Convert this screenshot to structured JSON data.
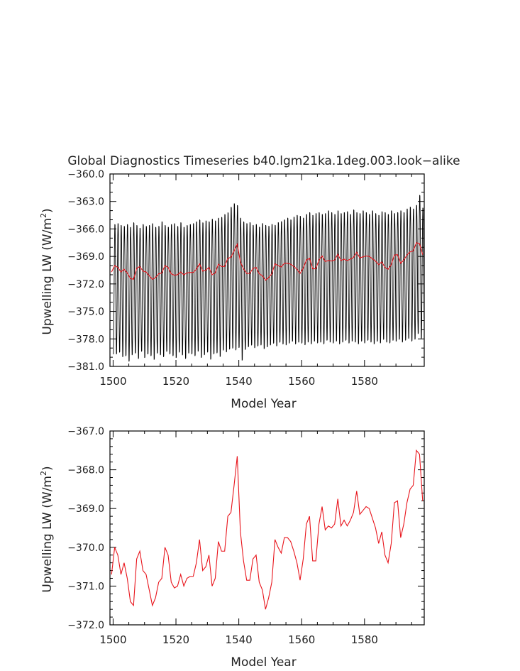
{
  "title": "Global Diagnostics Timeseries b40.lgm21ka.1deg.003.look−alike",
  "chart_data": [
    {
      "type": "line",
      "xlabel": "Model Year",
      "ylabel": "Upwelling LW (W/m",
      "ylabel_sup": "2",
      "ylabel_close": ")",
      "xlim": [
        1499,
        1599
      ],
      "ylim": [
        -381.0,
        -360.0
      ],
      "xticks": [
        1500,
        1520,
        1540,
        1560,
        1580
      ],
      "xtick_labels": [
        "1500",
        "1520",
        "1540",
        "1560",
        "1580"
      ],
      "yticks": [
        -381.0,
        -378.0,
        -375.0,
        -372.0,
        -369.0,
        -366.0,
        -363.0,
        -360.0
      ],
      "ytick_labels": [
        "−381.0",
        "−378.0",
        "−375.0",
        "−372.0",
        "−369.0",
        "−366.0",
        "−363.0",
        "−360.0"
      ],
      "series": [
        {
          "color": "#000000",
          "note_monthly": true,
          "x_start": 1500,
          "x_end": 1598,
          "monthly_max": [
            -365.3,
            -365.2,
            -365.4,
            -365.5,
            -365.3,
            -365.6,
            -365.1,
            -365.4,
            -365.7,
            -365.3,
            -365.5,
            -365.4,
            -365.2,
            -365.6,
            -365.5,
            -365.0,
            -365.4,
            -365.6,
            -365.3,
            -365.2,
            -365.5,
            -365.1,
            -365.6,
            -365.4,
            -365.3,
            -365.2,
            -365.0,
            -364.8,
            -365.1,
            -364.9,
            -365.0,
            -364.7,
            -364.9,
            -364.6,
            -364.5,
            -364.2,
            -364.0,
            -363.4,
            -363.0,
            -363.2,
            -364.6,
            -365.0,
            -365.2,
            -365.1,
            -365.4,
            -365.3,
            -365.6,
            -365.2,
            -365.4,
            -365.5,
            -365.3,
            -365.4,
            -365.1,
            -365.0,
            -364.8,
            -364.6,
            -364.8,
            -364.5,
            -364.3,
            -364.4,
            -364.6,
            -364.2,
            -364.0,
            -364.3,
            -364.1,
            -364.0,
            -364.2,
            -364.1,
            -363.8,
            -364.0,
            -364.2,
            -363.8,
            -364.1,
            -364.0,
            -363.9,
            -364.2,
            -363.7,
            -364.0,
            -364.1,
            -363.8,
            -364.0,
            -364.2,
            -363.8,
            -364.1,
            -364.3,
            -363.9,
            -364.0,
            -364.2,
            -363.8,
            -364.1,
            -364.0,
            -363.8,
            -364.0,
            -363.6,
            -363.4,
            -363.6,
            -363.2,
            -362.1,
            -363.5
          ],
          "monthly_min": [
            -380.0,
            -380.0,
            -379.8,
            -380.3,
            -380.2,
            -380.8,
            -380.1,
            -379.9,
            -380.5,
            -379.7,
            -380.4,
            -380.0,
            -380.2,
            -380.6,
            -379.9,
            -380.1,
            -380.3,
            -379.7,
            -380.0,
            -380.2,
            -380.4,
            -379.8,
            -380.1,
            -380.5,
            -379.9,
            -380.0,
            -380.2,
            -379.7,
            -380.4,
            -380.1,
            -379.8,
            -380.6,
            -380.0,
            -379.9,
            -380.3,
            -379.6,
            -379.8,
            -379.5,
            -379.4,
            -379.6,
            -379.3,
            -380.7,
            -379.5,
            -379.2,
            -379.0,
            -379.3,
            -379.1,
            -379.0,
            -379.4,
            -379.2,
            -379.0,
            -378.8,
            -379.1,
            -378.7,
            -378.9,
            -379.0,
            -378.8,
            -378.6,
            -378.9,
            -378.7,
            -378.8,
            -379.0,
            -378.7,
            -378.9,
            -378.6,
            -378.8,
            -378.7,
            -378.9,
            -378.5,
            -378.7,
            -378.8,
            -378.6,
            -378.9,
            -378.7,
            -378.5,
            -378.8,
            -378.6,
            -378.7,
            -378.9,
            -378.6,
            -378.8,
            -378.5,
            -378.7,
            -378.9,
            -378.6,
            -378.8,
            -378.4,
            -378.7,
            -378.8,
            -378.5,
            -378.6,
            -378.4,
            -378.7,
            -378.5,
            -378.3,
            -378.6,
            -378.4,
            -377.8,
            -378.3
          ]
        },
        {
          "color": "#e8141b",
          "x": [
            1499.5,
            1500.5,
            1501.5,
            1502.5,
            1503.5,
            1504.5,
            1505.5,
            1506.5,
            1507.5,
            1508.5,
            1509.5,
            1510.5,
            1511.5,
            1512.5,
            1513.5,
            1514.5,
            1515.5,
            1516.5,
            1517.5,
            1518.5,
            1519.5,
            1520.5,
            1521.5,
            1522.5,
            1523.5,
            1524.5,
            1525.5,
            1526.5,
            1527.5,
            1528.5,
            1529.5,
            1530.5,
            1531.5,
            1532.5,
            1533.5,
            1534.5,
            1535.5,
            1536.5,
            1537.5,
            1538.5,
            1539.5,
            1540.5,
            1541.5,
            1542.5,
            1543.5,
            1544.5,
            1545.5,
            1546.5,
            1547.5,
            1548.5,
            1549.5,
            1550.5,
            1551.5,
            1552.5,
            1553.5,
            1554.5,
            1555.5,
            1556.5,
            1557.5,
            1558.5,
            1559.5,
            1560.5,
            1561.5,
            1562.5,
            1563.5,
            1564.5,
            1565.5,
            1566.5,
            1567.5,
            1568.5,
            1569.5,
            1570.5,
            1571.5,
            1572.5,
            1573.5,
            1574.5,
            1575.5,
            1576.5,
            1577.5,
            1578.5,
            1579.5,
            1580.5,
            1581.5,
            1582.5,
            1583.5,
            1584.5,
            1585.5,
            1586.5,
            1587.5,
            1588.5,
            1589.5,
            1590.5,
            1591.5,
            1592.5,
            1593.5,
            1594.5,
            1595.5,
            1596.5,
            1597.5,
            1598.5
          ],
          "values": [
            -370.7,
            -370.0,
            -370.2,
            -370.7,
            -370.4,
            -370.8,
            -371.4,
            -371.5,
            -370.3,
            -370.1,
            -370.6,
            -370.7,
            -371.1,
            -371.5,
            -371.3,
            -370.9,
            -370.8,
            -370.0,
            -370.2,
            -370.9,
            -371.05,
            -371.0,
            -370.7,
            -371.0,
            -370.8,
            -370.75,
            -370.75,
            -370.4,
            -369.8,
            -370.6,
            -370.5,
            -370.2,
            -371.0,
            -370.8,
            -369.85,
            -370.1,
            -370.1,
            -369.2,
            -369.1,
            -368.4,
            -367.65,
            -369.6,
            -370.35,
            -370.85,
            -370.85,
            -370.3,
            -370.2,
            -370.9,
            -371.1,
            -371.6,
            -371.3,
            -370.9,
            -369.8,
            -370.0,
            -370.15,
            -369.75,
            -369.75,
            -369.85,
            -370.1,
            -370.4,
            -370.85,
            -370.3,
            -369.4,
            -369.2,
            -370.35,
            -370.35,
            -369.4,
            -368.95,
            -369.55,
            -369.45,
            -369.5,
            -369.4,
            -368.75,
            -369.45,
            -369.3,
            -369.45,
            -369.3,
            -369.1,
            -368.55,
            -369.15,
            -369.05,
            -368.95,
            -369.0,
            -369.25,
            -369.5,
            -369.9,
            -369.6,
            -370.2,
            -370.4,
            -369.9,
            -368.85,
            -368.8,
            -369.75,
            -369.4,
            -368.85,
            -368.5,
            -368.4,
            -367.5,
            -367.6,
            -368.8
          ]
        }
      ]
    },
    {
      "type": "line",
      "xlabel": "Model Year",
      "ylabel": "Upwelling LW (W/m",
      "ylabel_sup": "2",
      "ylabel_close": ")",
      "xlim": [
        1499,
        1599
      ],
      "ylim": [
        -372.0,
        -367.0
      ],
      "xticks": [
        1500,
        1520,
        1540,
        1560,
        1580
      ],
      "xtick_labels": [
        "1500",
        "1520",
        "1540",
        "1560",
        "1580"
      ],
      "yticks": [
        -372.0,
        -371.0,
        -370.0,
        -369.0,
        -368.0,
        -367.0
      ],
      "ytick_labels": [
        "−372.0",
        "−371.0",
        "−370.0",
        "−369.0",
        "−368.0",
        "−367.0"
      ],
      "series": [
        {
          "color": "#e8141b",
          "same_as_top_red": true
        }
      ]
    }
  ]
}
